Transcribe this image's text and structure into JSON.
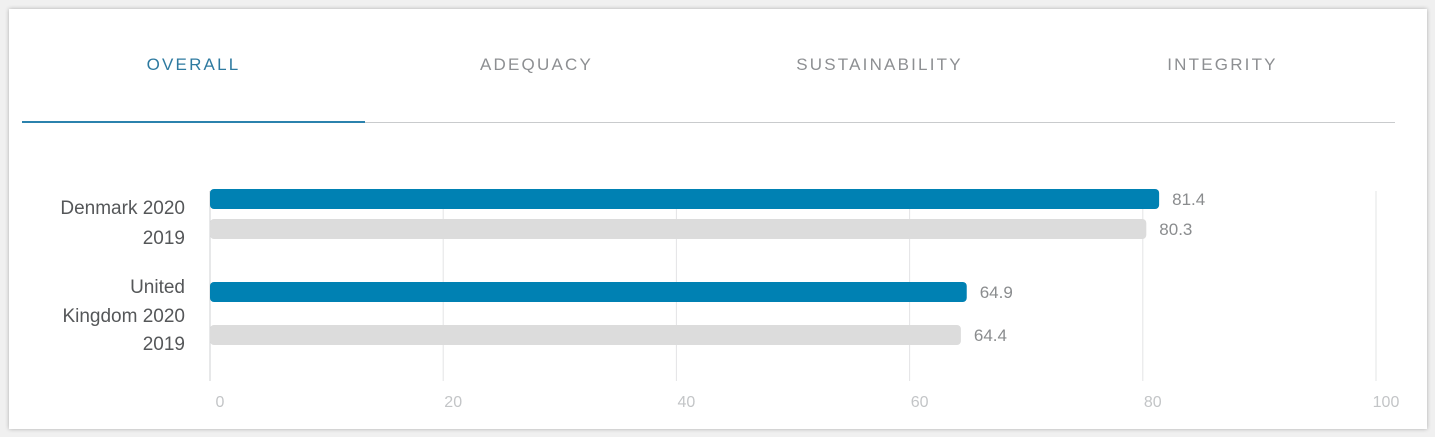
{
  "tabs": [
    {
      "label": "OVERALL",
      "active": true
    },
    {
      "label": "ADEQUACY",
      "active": false
    },
    {
      "label": "SUSTAINABILITY",
      "active": false
    },
    {
      "label": "INTEGRITY",
      "active": false
    }
  ],
  "colors": {
    "series_2020": "#0081b3",
    "series_2019": "#dcdcdc",
    "accent": "#2e7aa0"
  },
  "chart_data": {
    "type": "bar",
    "orientation": "horizontal",
    "title": "",
    "xlabel": "",
    "ylabel": "",
    "xlim": [
      0,
      100
    ],
    "x_ticks": [
      0,
      20,
      40,
      60,
      80,
      100
    ],
    "grid": true,
    "groups": [
      {
        "name_lines": [
          "Denmark 2020"
        ],
        "bars": [
          {
            "label": "Denmark 2020",
            "series": "2020",
            "value": 81.4,
            "value_label": "81.4"
          },
          {
            "label": "2019",
            "series": "2019",
            "value": 80.3,
            "value_label": "80.3"
          }
        ]
      },
      {
        "name_lines": [
          "United",
          "Kingdom 2020"
        ],
        "bars": [
          {
            "label": "United Kingdom 2020",
            "series": "2020",
            "value": 64.9,
            "value_label": "64.9"
          },
          {
            "label": "2019",
            "series": "2019",
            "value": 64.4,
            "value_label": "64.4"
          }
        ]
      }
    ]
  }
}
